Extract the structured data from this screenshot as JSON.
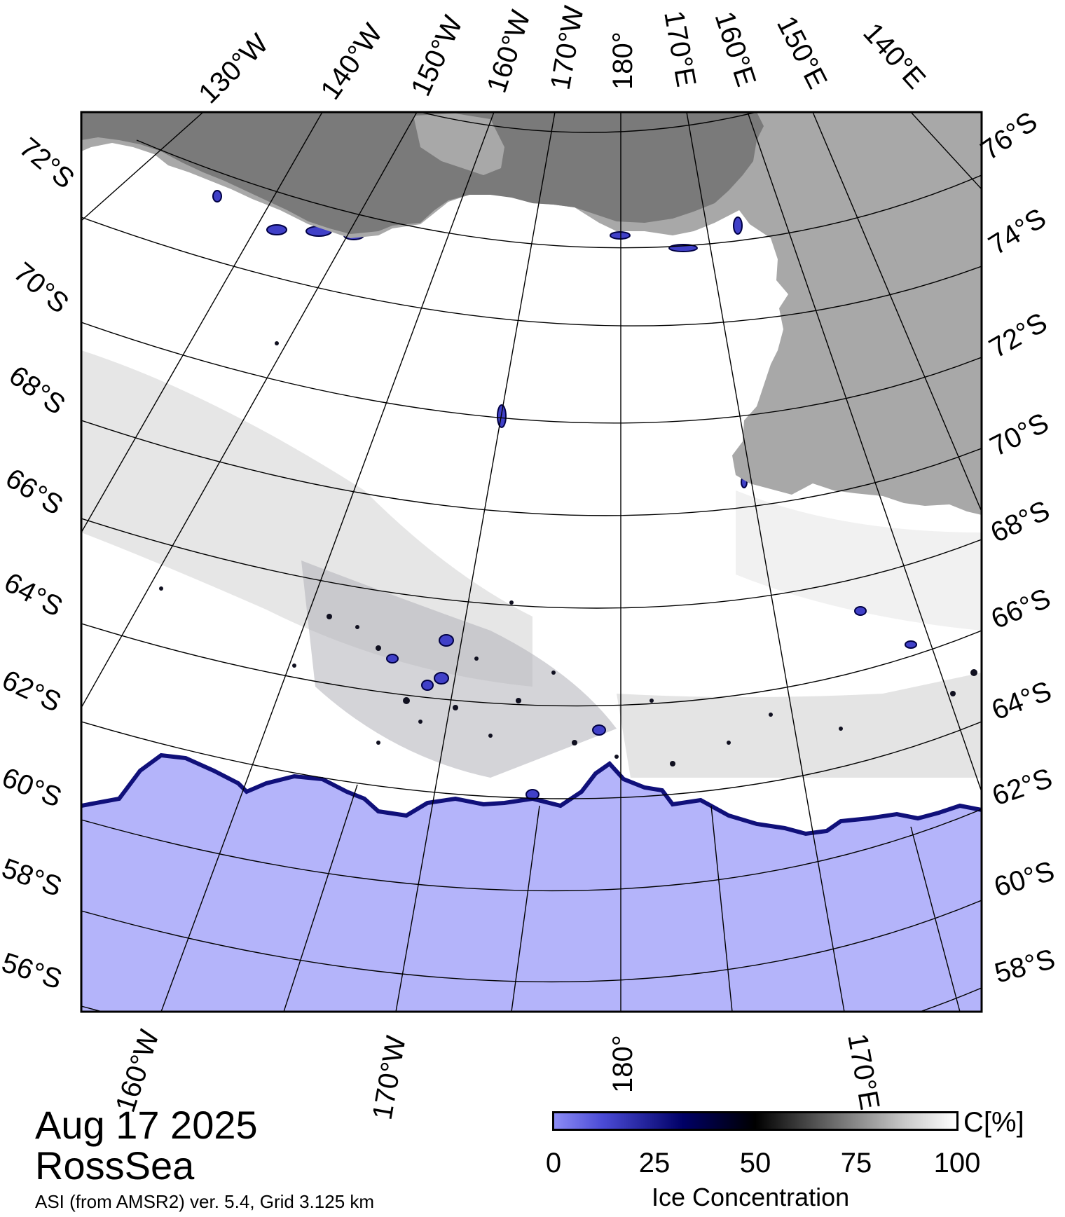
{
  "map": {
    "date": "Aug 17 2025",
    "region": "RossSea",
    "product": "ASI (from AMSR2) ver. 5.4,  Grid 3.125 km",
    "top_lon_labels": [
      "130°W",
      "140°W",
      "150°W",
      "160°W",
      "170°W",
      "180°",
      "170°E",
      "160°E",
      "150°E",
      "140°E"
    ],
    "bottom_lon_labels": [
      "160°W",
      "170°W",
      "180°",
      "170°E"
    ],
    "left_lat_labels": [
      "72°S",
      "70°S",
      "68°S",
      "66°S",
      "64°S",
      "62°S",
      "60°S",
      "58°S",
      "56°S"
    ],
    "right_lat_labels": [
      "76°S",
      "74°S",
      "72°S",
      "70°S",
      "68°S",
      "66°S",
      "64°S",
      "62°S",
      "60°S",
      "58°S"
    ],
    "colors": {
      "open_water": "#b4b4fa",
      "land": "#a8a8a8",
      "ice_shelf": "#7a7a7a",
      "high_ice": "#ffffff",
      "ice_edge": "#2020b0"
    }
  },
  "legend": {
    "unit_label": "C[%]",
    "title": "Ice Concentration",
    "ticks": [
      "0",
      "25",
      "50",
      "75",
      "100"
    ],
    "tick_values": [
      0,
      25,
      50,
      75,
      100
    ],
    "colorscale": [
      "#8c8cf5",
      "#4b4bd6",
      "#000066",
      "#000000",
      "#6e6e6e",
      "#c8c8c8",
      "#ffffff"
    ]
  }
}
